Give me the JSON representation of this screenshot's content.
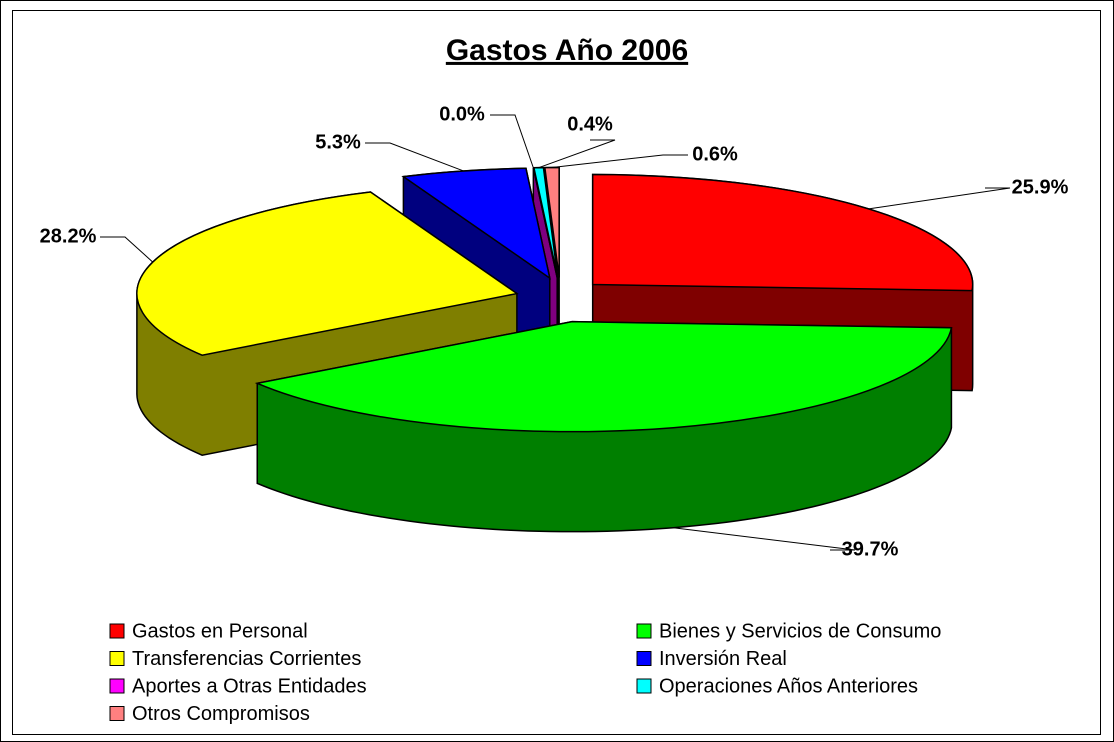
{
  "chart_data": {
    "type": "pie3d",
    "title": "Gastos Año 2006",
    "categories": [
      "Gastos en Personal",
      "Bienes y Servicios de Consumo",
      "Transferencias Corrientes",
      "Inversión Real",
      "Aportes a Otras Entidades",
      "Operaciones Años Anteriores",
      "Otros Compromisos"
    ],
    "values": [
      25.9,
      39.7,
      28.2,
      5.3,
      0.0,
      0.4,
      0.6
    ],
    "value_labels": [
      "25.9%",
      "39.7%",
      "28.2%",
      "5.3%",
      "0.0%",
      "0.4%",
      "0.6%"
    ],
    "colors": [
      "#ff0000",
      "#00ff00",
      "#ffff00",
      "#0000ff",
      "#ff00ff",
      "#00ffff",
      "#ff8080"
    ],
    "legend": "bottom"
  }
}
